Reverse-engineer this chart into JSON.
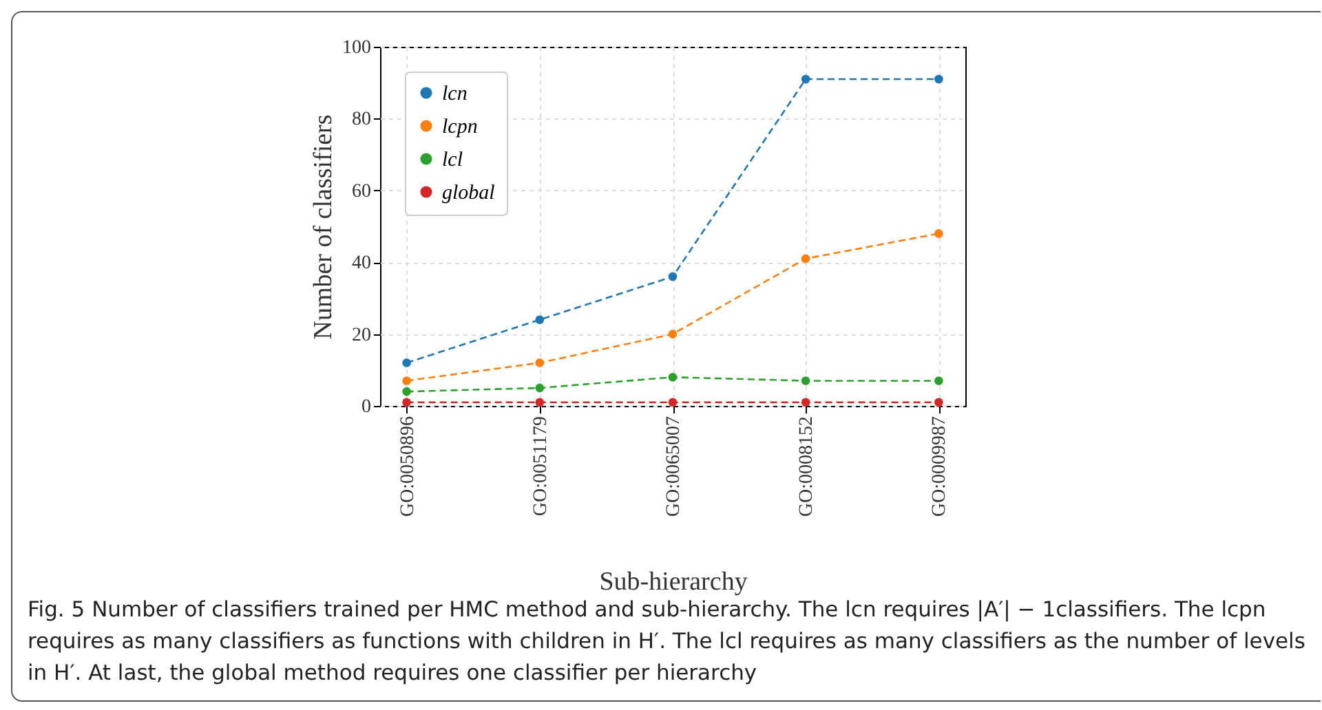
{
  "chart_data": {
    "type": "line",
    "xlabel": "Sub-hierarchy",
    "ylabel": "Number of classifiers",
    "categories": [
      "GO:0050896",
      "GO:0051179",
      "GO:0065007",
      "GO:0008152",
      "GO:0009987"
    ],
    "series": [
      {
        "name": "lcn",
        "color": "#1f77b4",
        "values": [
          12,
          24,
          36,
          91,
          91
        ]
      },
      {
        "name": "lcpn",
        "color": "#ff7f0e",
        "values": [
          7,
          12,
          20,
          41,
          48
        ]
      },
      {
        "name": "lcl",
        "color": "#2ca02c",
        "values": [
          4,
          5,
          8,
          7,
          7
        ]
      },
      {
        "name": "global",
        "color": "#d62728",
        "values": [
          1,
          1,
          1,
          1,
          1
        ]
      }
    ],
    "ylim": [
      0,
      100
    ],
    "yticks": [
      0,
      20,
      40,
      60,
      80,
      100
    ],
    "grid": true,
    "legend": "top left",
    "marker": "circle",
    "line_style": "dashed",
    "annotations": [
      "Fig. 5  Number of classifiers trained per HMC method and sub-hierarchy. The lcn requires |A′| − 1classifiers. The lcpn requires as many classifiers as functions with children in H′. The lcl requires as many classifiers as the number of levels in H′. At last, the global method requires one classifier per hierarchy"
    ]
  }
}
